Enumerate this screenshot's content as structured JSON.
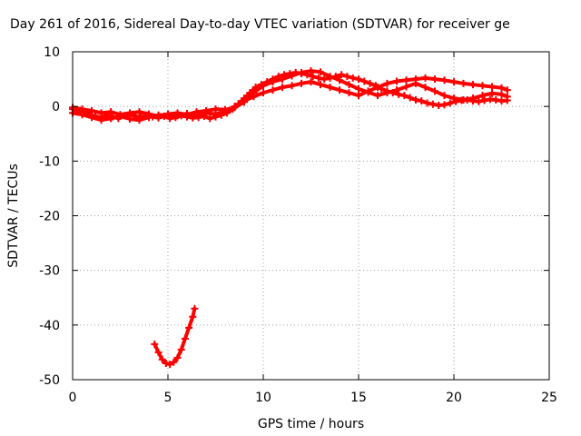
{
  "chart_data": {
    "type": "line",
    "title": "Day 261 of 2016, Sidereal Day-to-day VTEC variation (SDTVAR) for receiver ge",
    "xlabel": "GPS time / hours",
    "ylabel": "SDTVAR / TECUs",
    "xlim": [
      0,
      25
    ],
    "ylim": [
      -50,
      10
    ],
    "xticks": [
      "0",
      "5",
      "10",
      "15",
      "20",
      "25"
    ],
    "yticks": [
      "10",
      "0",
      "-10",
      "-20",
      "-30",
      "-40",
      "-50"
    ],
    "grid": true,
    "legend": "none",
    "color": "#ff0000",
    "series": [
      {
        "x": [
          0.0,
          0.3,
          0.6,
          0.9,
          1.2,
          1.5,
          1.8,
          2.1,
          2.4,
          2.7,
          3.0,
          3.3,
          3.6,
          3.9,
          4.2,
          4.5,
          4.8,
          5.1,
          5.4,
          5.7,
          6.0,
          6.3,
          6.6,
          6.9,
          7.2,
          7.5,
          7.8,
          8.1,
          8.4,
          8.7,
          9.0,
          9.3,
          9.6,
          9.9,
          10.2,
          10.5,
          10.8,
          11.1,
          11.4,
          11.7,
          12.0,
          12.3,
          12.6,
          12.9,
          13.2,
          13.5,
          13.8,
          14.1,
          14.4,
          14.7,
          15.0,
          15.3,
          15.6,
          15.9,
          16.2,
          16.5,
          16.8,
          17.1,
          17.4,
          17.7,
          18.0,
          18.3,
          18.6,
          18.9,
          19.2,
          19.5,
          19.8,
          20.1,
          20.4,
          20.7,
          21.0,
          21.3,
          21.6,
          21.9,
          22.2,
          22.5,
          22.8
        ],
        "y": [
          -0.5,
          -0.8,
          -1.0,
          -1.5,
          -1.8,
          -2.0,
          -1.6,
          -1.9,
          -2.2,
          -1.7,
          -1.5,
          -1.8,
          -2.0,
          -1.6,
          -1.9,
          -2.1,
          -1.8,
          -2.2,
          -2.0,
          -1.7,
          -1.9,
          -2.1,
          -2.0,
          -1.8,
          -2.2,
          -1.9,
          -1.6,
          -1.2,
          -0.5,
          0.5,
          1.5,
          2.5,
          3.5,
          4.0,
          4.5,
          5.0,
          5.5,
          5.8,
          6.0,
          6.2,
          6.0,
          5.8,
          5.5,
          5.2,
          5.0,
          5.2,
          5.5,
          5.8,
          5.5,
          5.2,
          5.0,
          4.6,
          4.2,
          3.8,
          3.2,
          2.8,
          2.5,
          2.2,
          2.0,
          1.6,
          1.2,
          1.0,
          0.6,
          0.4,
          0.2,
          0.3,
          0.6,
          0.9,
          1.1,
          1.2,
          1.0,
          0.9,
          1.1,
          1.3,
          1.2,
          1.0,
          1.1
        ]
      },
      {
        "x": [
          0.0,
          0.5,
          1.0,
          1.5,
          2.0,
          2.5,
          3.0,
          3.5,
          4.0,
          4.5,
          5.0,
          5.5,
          6.0,
          6.5,
          7.0,
          7.5,
          8.0,
          8.5,
          9.0,
          9.5,
          10.0,
          10.5,
          11.0,
          11.5,
          12.0,
          12.5,
          13.0,
          13.5,
          14.0,
          14.5,
          15.0,
          15.5,
          16.0,
          16.5,
          17.0,
          17.5,
          18.0,
          18.5,
          19.0,
          19.5,
          20.0,
          20.5,
          21.0,
          21.5,
          22.0,
          22.5,
          22.8
        ],
        "y": [
          -1.2,
          -1.5,
          -2.0,
          -2.5,
          -2.2,
          -1.8,
          -2.3,
          -2.5,
          -2.0,
          -1.6,
          -1.5,
          -1.7,
          -1.3,
          -1.6,
          -1.2,
          -1.4,
          -1.0,
          0.0,
          1.0,
          1.8,
          2.5,
          3.0,
          3.5,
          3.8,
          4.2,
          4.5,
          4.0,
          3.5,
          3.0,
          2.5,
          2.0,
          2.8,
          3.5,
          4.2,
          4.6,
          4.8,
          5.0,
          5.2,
          5.0,
          4.8,
          4.5,
          4.2,
          4.0,
          3.8,
          3.6,
          3.4,
          3.0
        ]
      },
      {
        "x": [
          0.0,
          0.5,
          1.0,
          1.5,
          2.0,
          2.5,
          3.0,
          3.5,
          4.0,
          4.5,
          5.0,
          5.5,
          6.0,
          6.5,
          7.0,
          7.5,
          8.0,
          8.5,
          9.0,
          9.5,
          10.0,
          10.5,
          11.0,
          11.5,
          12.0,
          12.5,
          13.0,
          13.5,
          14.0,
          14.5,
          15.0,
          15.5,
          16.0,
          16.5,
          17.0,
          17.5,
          18.0,
          18.5,
          19.0,
          19.5,
          20.0,
          20.5,
          21.0,
          21.5,
          22.0,
          22.5,
          22.8
        ],
        "y": [
          -0.2,
          -0.5,
          -0.8,
          -1.2,
          -1.0,
          -1.5,
          -1.2,
          -1.0,
          -1.4,
          -1.8,
          -1.4,
          -1.2,
          -1.5,
          -1.0,
          -0.8,
          -0.5,
          -0.6,
          -0.2,
          0.8,
          2.5,
          3.8,
          4.5,
          5.0,
          5.6,
          6.2,
          6.5,
          6.3,
          5.5,
          4.8,
          4.0,
          3.2,
          2.6,
          2.0,
          2.5,
          3.0,
          3.6,
          4.2,
          3.5,
          2.8,
          2.0,
          1.5,
          1.2,
          1.5,
          2.0,
          2.4,
          2.2,
          1.8
        ]
      },
      {
        "x": [
          4.3,
          4.5,
          4.7,
          4.9,
          5.1,
          5.3,
          5.5,
          5.7,
          5.9,
          6.1,
          6.3,
          6.4
        ],
        "y": [
          -43.5,
          -45.0,
          -46.3,
          -47.0,
          -47.2,
          -46.8,
          -46.0,
          -44.5,
          -42.5,
          -40.5,
          -38.5,
          -37.0
        ]
      }
    ]
  }
}
